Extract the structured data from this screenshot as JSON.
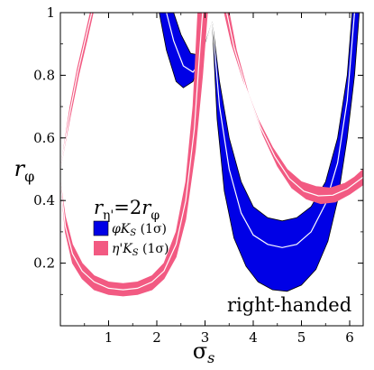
{
  "chart_data": {
    "type": "area",
    "xlabel_symbol": "σ",
    "xlabel_sub": "s",
    "ylabel_symbol": "r",
    "ylabel_sub": "φ",
    "xlim": [
      0,
      6.28
    ],
    "ylim": [
      0,
      1
    ],
    "xticks": [
      "1",
      "2",
      "3",
      "4",
      "5",
      "6"
    ],
    "yticks": [
      "0.2",
      "0.4",
      "0.6",
      "0.8",
      "1"
    ],
    "annotation": "right-handed",
    "legend": {
      "title_lhs": "r",
      "title_lhs_sub": "η'",
      "title_eq": "=2",
      "title_rhs": "r",
      "title_rhs_sub": "φ",
      "placement": "center-left",
      "entries": [
        {
          "text": "φK",
          "sub": "S",
          "suffix": " (1σ)",
          "color": "#0000e6"
        },
        {
          "text": "η'K",
          "sub": "S",
          "suffix": " (1σ)",
          "color": "#f25a82"
        }
      ]
    },
    "series": [
      {
        "name": "φK_S (1σ)",
        "color": "#0000e6",
        "outline": "#000000",
        "centerline": "#ffffff",
        "segments": [
          {
            "upper": [
              [
                2.35,
                1.0
              ],
              [
                2.5,
                0.93
              ],
              [
                2.7,
                0.87
              ],
              [
                2.85,
                0.865
              ],
              [
                3.0,
                0.9
              ],
              [
                3.15,
                0.97
              ]
            ],
            "lower": [
              [
                2.05,
                1.0
              ],
              [
                2.2,
                0.88
              ],
              [
                2.4,
                0.78
              ],
              [
                2.55,
                0.76
              ],
              [
                2.75,
                0.78
              ],
              [
                2.9,
                0.84
              ],
              [
                3.05,
                0.92
              ],
              [
                3.15,
                0.97
              ]
            ],
            "center": [
              [
                2.2,
                1.0
              ],
              [
                2.35,
                0.91
              ],
              [
                2.55,
                0.83
              ],
              [
                2.75,
                0.81
              ],
              [
                2.9,
                0.84
              ],
              [
                3.05,
                0.92
              ],
              [
                3.15,
                0.97
              ]
            ]
          },
          {
            "upper": [
              [
                3.15,
                0.97
              ],
              [
                3.3,
                0.78
              ],
              [
                3.5,
                0.6
              ],
              [
                3.75,
                0.46
              ],
              [
                4.0,
                0.38
              ],
              [
                4.3,
                0.345
              ],
              [
                4.6,
                0.335
              ],
              [
                4.9,
                0.345
              ],
              [
                5.2,
                0.38
              ],
              [
                5.5,
                0.46
              ],
              [
                5.75,
                0.6
              ],
              [
                5.95,
                0.8
              ],
              [
                6.05,
                1.0
              ]
            ],
            "lower": [
              [
                3.15,
                0.97
              ],
              [
                3.25,
                0.66
              ],
              [
                3.4,
                0.43
              ],
              [
                3.6,
                0.28
              ],
              [
                3.85,
                0.19
              ],
              [
                4.1,
                0.14
              ],
              [
                4.4,
                0.115
              ],
              [
                4.7,
                0.11
              ],
              [
                5.0,
                0.13
              ],
              [
                5.3,
                0.18
              ],
              [
                5.55,
                0.27
              ],
              [
                5.75,
                0.4
              ],
              [
                5.95,
                0.6
              ],
              [
                6.1,
                0.8
              ],
              [
                6.2,
                1.0
              ]
            ],
            "center": [
              [
                3.15,
                0.97
              ],
              [
                3.3,
                0.7
              ],
              [
                3.5,
                0.5
              ],
              [
                3.75,
                0.36
              ],
              [
                4.0,
                0.29
              ],
              [
                4.3,
                0.26
              ],
              [
                4.6,
                0.25
              ],
              [
                4.9,
                0.26
              ],
              [
                5.2,
                0.3
              ],
              [
                5.5,
                0.39
              ],
              [
                5.75,
                0.52
              ],
              [
                5.95,
                0.72
              ],
              [
                6.1,
                1.0
              ]
            ]
          }
        ]
      },
      {
        "name": "η'K_S (1σ)",
        "color": "#f25a82",
        "outline": "#f25a82",
        "centerline": "#ffffff",
        "segments": [
          {
            "upper": [
              [
                0.0,
                0.5
              ],
              [
                0.1,
                0.6
              ],
              [
                0.2,
                0.7
              ],
              [
                0.35,
                0.82
              ],
              [
                0.5,
                0.92
              ],
              [
                0.62,
                1.0
              ]
            ],
            "lower": [
              [
                0.0,
                0.5
              ],
              [
                0.1,
                0.585
              ],
              [
                0.22,
                0.68
              ],
              [
                0.38,
                0.8
              ],
              [
                0.55,
                0.91
              ],
              [
                0.68,
                1.0
              ]
            ],
            "center": [
              [
                0.0,
                0.5
              ],
              [
                0.1,
                0.592
              ],
              [
                0.21,
                0.69
              ],
              [
                0.36,
                0.81
              ],
              [
                0.52,
                0.915
              ],
              [
                0.65,
                1.0
              ]
            ]
          },
          {
            "upper": [
              [
                0.0,
                0.46
              ],
              [
                0.1,
                0.35
              ],
              [
                0.25,
                0.26
              ],
              [
                0.45,
                0.2
              ],
              [
                0.7,
                0.16
              ],
              [
                1.0,
                0.14
              ],
              [
                1.3,
                0.135
              ],
              [
                1.6,
                0.14
              ],
              [
                1.9,
                0.16
              ],
              [
                2.15,
                0.2
              ],
              [
                2.4,
                0.3
              ],
              [
                2.6,
                0.46
              ],
              [
                2.75,
                0.7
              ],
              [
                2.85,
                1.0
              ]
            ],
            "lower": [
              [
                0.0,
                0.46
              ],
              [
                0.1,
                0.3
              ],
              [
                0.25,
                0.2
              ],
              [
                0.45,
                0.15
              ],
              [
                0.7,
                0.115
              ],
              [
                1.0,
                0.1
              ],
              [
                1.3,
                0.095
              ],
              [
                1.6,
                0.1
              ],
              [
                1.9,
                0.115
              ],
              [
                2.15,
                0.15
              ],
              [
                2.4,
                0.22
              ],
              [
                2.6,
                0.34
              ],
              [
                2.8,
                0.56
              ],
              [
                2.95,
                0.8
              ],
              [
                3.05,
                1.0
              ]
            ],
            "center": [
              [
                0.0,
                0.46
              ],
              [
                0.1,
                0.32
              ],
              [
                0.25,
                0.23
              ],
              [
                0.45,
                0.175
              ],
              [
                0.7,
                0.14
              ],
              [
                1.0,
                0.12
              ],
              [
                1.3,
                0.115
              ],
              [
                1.6,
                0.12
              ],
              [
                1.9,
                0.14
              ],
              [
                2.15,
                0.175
              ],
              [
                2.4,
                0.26
              ],
              [
                2.6,
                0.4
              ],
              [
                2.78,
                0.63
              ],
              [
                2.9,
                0.9
              ],
              [
                2.95,
                1.0
              ]
            ]
          },
          {
            "upper": [
              [
                3.4,
                1.0
              ],
              [
                3.55,
                0.9
              ],
              [
                3.8,
                0.78
              ],
              [
                4.1,
                0.66
              ],
              [
                4.4,
                0.57
              ],
              [
                4.7,
                0.5
              ],
              [
                5.0,
                0.46
              ],
              [
                5.3,
                0.445
              ],
              [
                5.6,
                0.44
              ],
              [
                5.9,
                0.455
              ],
              [
                6.1,
                0.475
              ],
              [
                6.28,
                0.5
              ]
            ],
            "lower": [
              [
                3.5,
                1.0
              ],
              [
                3.65,
                0.88
              ],
              [
                3.9,
                0.74
              ],
              [
                4.2,
                0.61
              ],
              [
                4.5,
                0.51
              ],
              [
                4.8,
                0.44
              ],
              [
                5.1,
                0.405
              ],
              [
                5.4,
                0.39
              ],
              [
                5.7,
                0.395
              ],
              [
                6.0,
                0.42
              ],
              [
                6.28,
                0.45
              ]
            ],
            "center": [
              [
                3.45,
                1.0
              ],
              [
                3.6,
                0.89
              ],
              [
                3.85,
                0.76
              ],
              [
                4.15,
                0.635
              ],
              [
                4.45,
                0.54
              ],
              [
                4.75,
                0.47
              ],
              [
                5.05,
                0.43
              ],
              [
                5.35,
                0.415
              ],
              [
                5.65,
                0.417
              ],
              [
                5.95,
                0.437
              ],
              [
                6.28,
                0.475
              ]
            ]
          }
        ]
      }
    ]
  }
}
